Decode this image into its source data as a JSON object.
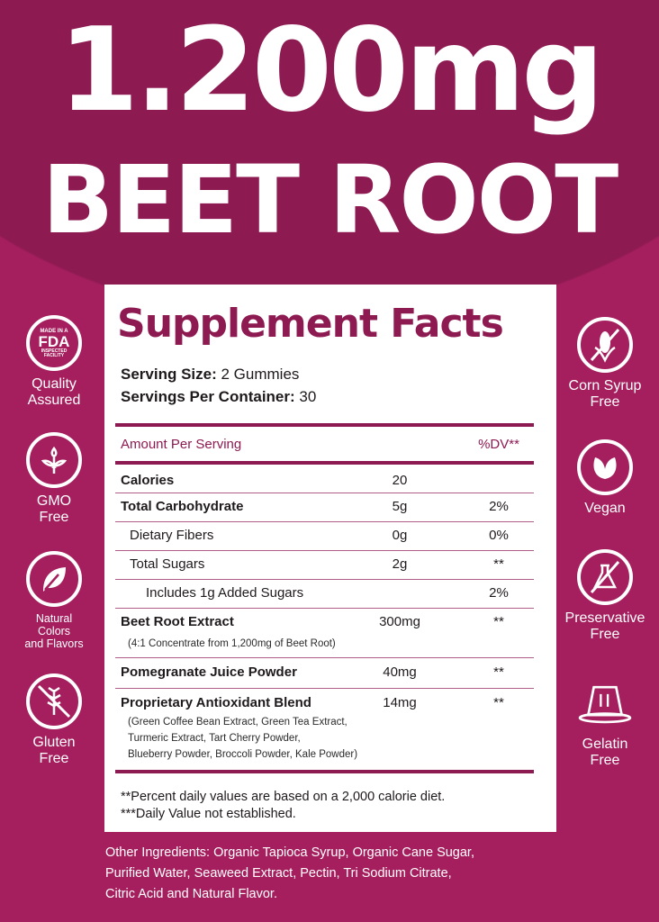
{
  "headline": {
    "amount": "1.200mg",
    "product": "BEET ROOT"
  },
  "colors": {
    "brand": "#8e1a52",
    "background": "#a51f5e",
    "panel": "#ffffff"
  },
  "facts": {
    "title": "Supplement Facts",
    "serving_size_label": "Serving Size:",
    "serving_size": "2 Gummies",
    "servings_label": "Servings Per Container:",
    "servings": "30",
    "header_amount": "Amount Per Serving",
    "header_dv": "%DV**",
    "rows": [
      {
        "name": "Calories",
        "amount": "20",
        "dv": ""
      },
      {
        "name": "Total Carbohydrate",
        "amount": "5g",
        "dv": "2%"
      },
      {
        "name": "Dietary Fibers",
        "amount": "0g",
        "dv": "0%"
      },
      {
        "name": "Total Sugars",
        "amount": "2g",
        "dv": "**"
      },
      {
        "name": "Includes 1g Added Sugars",
        "amount": "",
        "dv": "2%"
      },
      {
        "name": "Beet Root Extract",
        "amount": "300mg",
        "dv": "**",
        "note": "(4:1 Concentrate from 1,200mg of Beet Root)"
      },
      {
        "name": "Pomegranate Juice Powder",
        "amount": "40mg",
        "dv": "**"
      },
      {
        "name": "Proprietary Antioxidant Blend",
        "amount": "14mg",
        "dv": "**",
        "note_lines": [
          "(Green Coffee Bean Extract, Green Tea Extract,",
          "Turmeric Extract, Tart Cherry Powder,",
          "Blueberry Powder, Broccoli Powder, Kale Powder)"
        ]
      }
    ],
    "footnotes": [
      "**Percent daily values are based on a 2,000 calorie diet.",
      "***Daily Value not established."
    ]
  },
  "other_ingredients": [
    "Other Ingredients: Organic Tapioca Syrup, Organic Cane Sugar,",
    "Purified Water, Seaweed Extract, Pectin, Tri Sodium Citrate,",
    "Citric Acid and Natural Flavor."
  ],
  "badges_left": [
    {
      "icon": "fda-seal-icon",
      "seal_text": [
        "MADE IN A",
        "FDA",
        "INSPECTED FACILITY"
      ],
      "label": [
        "Quality",
        "Assured"
      ]
    },
    {
      "icon": "sprout-icon",
      "label": [
        "GMO",
        "Free"
      ]
    },
    {
      "icon": "leaf-icon",
      "label": [
        "Natural",
        "Colors",
        "and Flavors"
      ]
    },
    {
      "icon": "no-wheat-icon",
      "label": [
        "Gluten",
        "Free"
      ]
    }
  ],
  "badges_right": [
    {
      "icon": "no-corn-icon",
      "label": [
        "Corn Syrup",
        "Free"
      ]
    },
    {
      "icon": "vegan-leaves-icon",
      "label": [
        "Vegan"
      ]
    },
    {
      "icon": "no-flask-icon",
      "label": [
        "Preservative",
        "Free"
      ]
    },
    {
      "icon": "jelly-icon",
      "label": [
        "Gelatin",
        "Free"
      ]
    }
  ]
}
